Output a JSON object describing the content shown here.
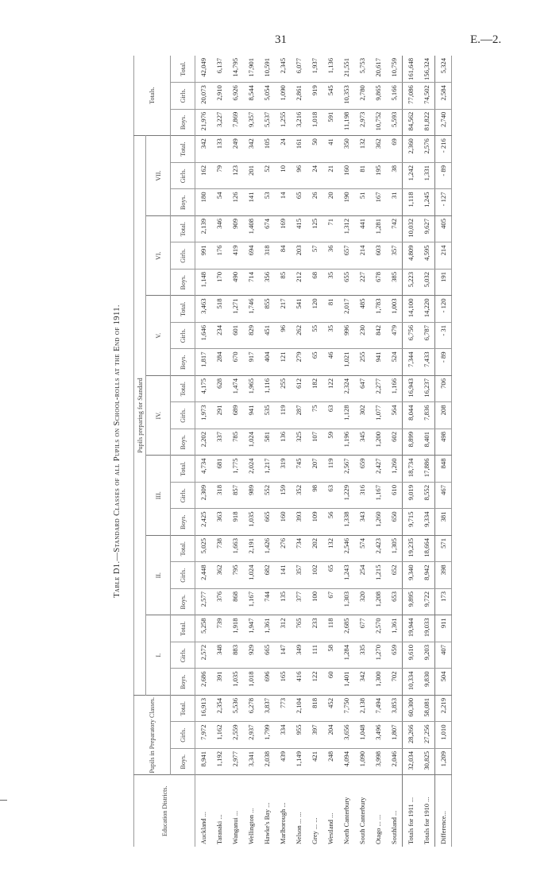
{
  "page": {
    "number": "31",
    "ref": "E.—2."
  },
  "title": "Table D1.—Standard Classes of all Pupils on School-rolls at the End of 1911.",
  "headers": {
    "districts": "Education Districts.",
    "preparatory": "Pupils in Preparatory Classes.",
    "preparing": "Pupils preparing for Standard",
    "totals": "Totals.",
    "classes": [
      "I.",
      "II.",
      "III.",
      "IV.",
      "V.",
      "VI.",
      "VII."
    ],
    "sub": [
      "Boys.",
      "Girls.",
      "Total."
    ]
  },
  "rows": [
    {
      "district": "Auckland ...",
      "values": [
        "8,941",
        "7,972",
        "16,913",
        "2,686",
        "2,572",
        "5,258",
        "2,577",
        "2,448",
        "5,025",
        "2,425",
        "2,309",
        "4,734",
        "2,202",
        "1,973",
        "4,175",
        "1,817",
        "1,646",
        "3,463",
        "1,148",
        "991",
        "2,139",
        "180",
        "162",
        "342",
        "21,976",
        "20,073",
        "42,049"
      ]
    },
    {
      "district": "Taranaki ...",
      "values": [
        "1,192",
        "1,162",
        "2,354",
        "391",
        "348",
        "739",
        "376",
        "362",
        "738",
        "363",
        "318",
        "681",
        "337",
        "291",
        "628",
        "284",
        "234",
        "518",
        "170",
        "176",
        "346",
        "54",
        "79",
        "133",
        "3,227",
        "2,910",
        "6,137"
      ]
    },
    {
      "district": "Wanganui ...",
      "values": [
        "2,977",
        "2,559",
        "5,536",
        "1,035",
        "883",
        "1,918",
        "868",
        "795",
        "1,663",
        "918",
        "857",
        "1,775",
        "785",
        "689",
        "1,474",
        "670",
        "601",
        "1,271",
        "490",
        "419",
        "909",
        "126",
        "123",
        "249",
        "7,869",
        "6,926",
        "14,795"
      ]
    },
    {
      "district": "Wellington ...",
      "values": [
        "3,341",
        "2,937",
        "6,278",
        "1,018",
        "929",
        "1,947",
        "1,167",
        "1,024",
        "2,191",
        "1,035",
        "989",
        "2,024",
        "1,024",
        "941",
        "1,965",
        "917",
        "829",
        "1,746",
        "714",
        "694",
        "1,408",
        "141",
        "201",
        "342",
        "9,357",
        "8,544",
        "17,901"
      ]
    },
    {
      "district": "Hawke's Bay ...",
      "values": [
        "2,038",
        "1,799",
        "3,837",
        "696",
        "665",
        "1,361",
        "744",
        "682",
        "1,426",
        "665",
        "552",
        "1,217",
        "581",
        "535",
        "1,116",
        "404",
        "451",
        "855",
        "356",
        "318",
        "674",
        "53",
        "52",
        "105",
        "5,537",
        "5,054",
        "10,591"
      ]
    },
    {
      "district": "Marlborough ...",
      "values": [
        "439",
        "334",
        "773",
        "165",
        "147",
        "312",
        "135",
        "141",
        "276",
        "160",
        "159",
        "319",
        "136",
        "119",
        "255",
        "121",
        "96",
        "217",
        "85",
        "84",
        "169",
        "14",
        "10",
        "24",
        "1,255",
        "1,090",
        "2,345"
      ]
    },
    {
      "district": "Nelson ... ...",
      "values": [
        "1,149",
        "955",
        "2,104",
        "416",
        "349",
        "765",
        "377",
        "357",
        "734",
        "393",
        "352",
        "745",
        "325",
        "287",
        "612",
        "279",
        "262",
        "541",
        "212",
        "203",
        "415",
        "65",
        "96",
        "161",
        "3,216",
        "2,861",
        "6,077"
      ]
    },
    {
      "district": "Grey ... ...",
      "values": [
        "421",
        "397",
        "818",
        "122",
        "111",
        "233",
        "100",
        "102",
        "202",
        "109",
        "98",
        "207",
        "107",
        "75",
        "182",
        "65",
        "55",
        "120",
        "68",
        "57",
        "125",
        "26",
        "24",
        "50",
        "1,018",
        "919",
        "1,937"
      ]
    },
    {
      "district": "Westland ...",
      "values": [
        "248",
        "204",
        "452",
        "60",
        "58",
        "118",
        "67",
        "65",
        "132",
        "56",
        "63",
        "119",
        "59",
        "63",
        "122",
        "46",
        "35",
        "81",
        "35",
        "36",
        "71",
        "20",
        "21",
        "41",
        "591",
        "545",
        "1,136"
      ]
    },
    {
      "district": "North Canterbury",
      "values": [
        "4,094",
        "3,656",
        "7,750",
        "1,401",
        "1,284",
        "2,685",
        "1,303",
        "1,243",
        "2,546",
        "1,338",
        "1,229",
        "2,567",
        "1,196",
        "1,128",
        "2,324",
        "1,021",
        "996",
        "2,017",
        "655",
        "657",
        "1,312",
        "190",
        "160",
        "350",
        "11,198",
        "10,353",
        "21,551"
      ]
    },
    {
      "district": "South Canterbury",
      "values": [
        "1,090",
        "1,048",
        "2,138",
        "342",
        "335",
        "677",
        "320",
        "254",
        "574",
        "343",
        "316",
        "659",
        "345",
        "302",
        "647",
        "255",
        "230",
        "485",
        "227",
        "214",
        "441",
        "51",
        "81",
        "132",
        "2,973",
        "2,780",
        "5,753"
      ]
    },
    {
      "district": "Otago ... ...",
      "values": [
        "3,998",
        "3,496",
        "7,494",
        "1,300",
        "1,270",
        "2,570",
        "1,208",
        "1,215",
        "2,423",
        "1,260",
        "1,167",
        "2,427",
        "1,200",
        "1,077",
        "2,277",
        "941",
        "842",
        "1,783",
        "678",
        "603",
        "1,281",
        "167",
        "195",
        "362",
        "10,752",
        "9,865",
        "20,617"
      ]
    },
    {
      "district": "Southland ...",
      "values": [
        "2,046",
        "1,807",
        "3,853",
        "702",
        "659",
        "1,361",
        "653",
        "652",
        "1,305",
        "650",
        "610",
        "1,260",
        "602",
        "564",
        "1,166",
        "524",
        "479",
        "1,003",
        "385",
        "357",
        "742",
        "31",
        "38",
        "69",
        "5,593",
        "5,166",
        "10,759"
      ]
    },
    {
      "district": "Totals for 1911 ...",
      "values": [
        "32,034",
        "28,266",
        "60,300",
        "10,334",
        "9,610",
        "19,944",
        "9,895",
        "9,340",
        "19,235",
        "9,715",
        "9,019",
        "18,734",
        "8,899",
        "8,044",
        "16,943",
        "7,344",
        "6,756",
        "14,100",
        "5,223",
        "4,809",
        "10,032",
        "1,118",
        "1,242",
        "2,360",
        "84,562",
        "77,086",
        "161,648"
      ]
    },
    {
      "district": "Totals for 1910 ...",
      "values": [
        "30,825",
        "27,256",
        "58,081",
        "9,830",
        "9,203",
        "19,033",
        "9,722",
        "8,942",
        "18,664",
        "9,334",
        "8,552",
        "17,886",
        "8,401",
        "7,836",
        "16,237",
        "7,433",
        "6,787",
        "14,220",
        "5,032",
        "4,595",
        "9,627",
        "1,245",
        "1,331",
        "2,576",
        "81,822",
        "74,502",
        "156,324"
      ]
    },
    {
      "district": "Difference...",
      "values": [
        "1,209",
        "1,010",
        "2,219",
        "504",
        "407",
        "911",
        "173",
        "398",
        "571",
        "381",
        "467",
        "848",
        "498",
        "208",
        "706",
        "- 89",
        "- 31",
        "- 120",
        "191",
        "214",
        "405",
        "- 127",
        "- 89",
        "- 216",
        "2,740",
        "2,584",
        "5,324"
      ]
    }
  ]
}
